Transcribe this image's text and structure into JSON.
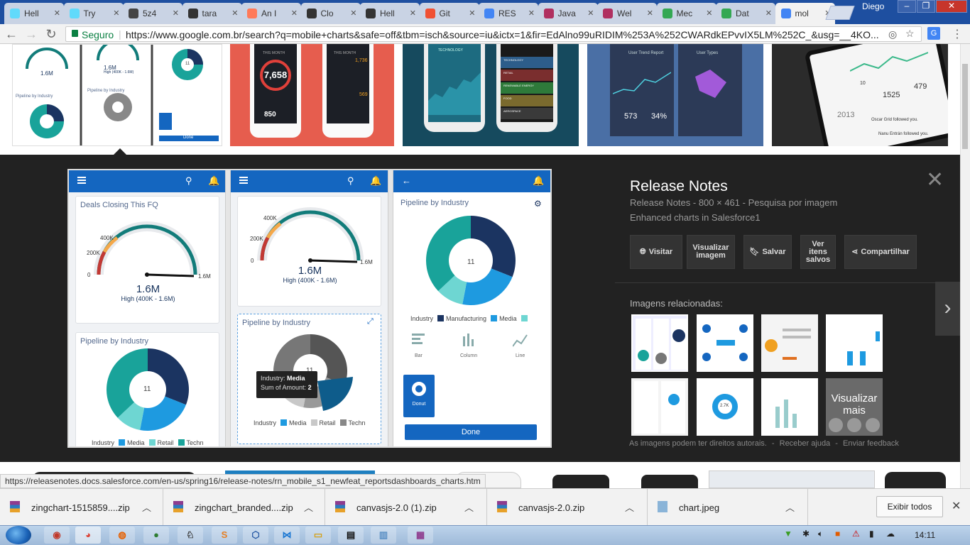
{
  "browser": {
    "user": "Diego",
    "tabs": [
      {
        "title": "Hell",
        "icon": "react-icon",
        "color": "#61dafb"
      },
      {
        "title": "Try",
        "icon": "react-icon",
        "color": "#61dafb"
      },
      {
        "title": "5z4",
        "icon": "codesandbox-icon",
        "color": "#444444"
      },
      {
        "title": "tara",
        "icon": "github-icon",
        "color": "#333333"
      },
      {
        "title": "An I",
        "icon": "hubspot-icon",
        "color": "#ff7a59"
      },
      {
        "title": "Clo",
        "icon": "github-icon",
        "color": "#333333"
      },
      {
        "title": "Hell",
        "icon": "github-icon",
        "color": "#333333"
      },
      {
        "title": "Git",
        "icon": "git-icon",
        "color": "#f05133"
      },
      {
        "title": "RES",
        "icon": "google-icon",
        "color": "#4285f4"
      },
      {
        "title": "Java",
        "icon": "chart-icon",
        "color": "#b03060"
      },
      {
        "title": "Wel",
        "icon": "chart-icon",
        "color": "#b03060"
      },
      {
        "title": "Mec",
        "icon": "sparkle-icon",
        "color": "#34a853"
      },
      {
        "title": "Dat",
        "icon": "sparkle-icon",
        "color": "#34a853"
      },
      {
        "title": "mol",
        "icon": "google-icon",
        "color": "#4285f4"
      }
    ],
    "omnibox": {
      "secure_label": "Seguro",
      "url": "https://www.google.com.br/search?q=mobile+charts&safe=off&tbm=isch&source=iu&ictx=1&fir=EdAlno99uRIDIM%253A%252CWARdkEPvvIX5LM%252C_&usg=__4KO..."
    }
  },
  "thumbs_top": {
    "mini_gauge_value": "1.6M",
    "mini_gauge_sub": "High (400K - 1.6M)",
    "mini_pipeline_title": "Pipeline by Industry",
    "mini_donut_center": "11",
    "mini_done": "Done",
    "app1_number": "7,658",
    "app1_header": "THIS MONTH",
    "app1_small": "850",
    "app2_header": "THIS MONTH",
    "app2_top": "1,736",
    "app2_mid": "569",
    "app3_header": "TECHNOLOGY",
    "app3_r1": "TECHNOLOGY",
    "app3_r2": "RETAIL",
    "app3_r3": "RENEWABLE ENERGY",
    "app3_r4": "FOOD",
    "app3_r5": "AEROSPACE",
    "app4_left_title": "User Trend Report",
    "app4_right_title": "User Types",
    "app4_stat1": "573",
    "app4_stat2": "34%",
    "app5_num1": "10",
    "app5_num2": "1525",
    "app5_num3": "479",
    "app5_year": "2013",
    "app5_feed1": "Oscar Grid followed you.",
    "app5_feed2": "Nanu Entrán followed you."
  },
  "preview": {
    "phone1": {
      "card1_title": "Deals Closing This FQ",
      "tick_0": "0",
      "tick_200k": "200K",
      "tick_400k": "400K",
      "tick_max": "1.6M",
      "value": "1.6M",
      "subtitle": "High (400K - 1.6M)",
      "card2_title": "Pipeline by Industry",
      "donut_center": "11",
      "legend_label": "Industry",
      "legend": [
        "Media",
        "Retail",
        "Techn"
      ]
    },
    "phone2": {
      "tick_0": "0",
      "tick_200k": "200K",
      "tick_400k": "400K",
      "tick_max": "1.6M",
      "value": "1.6M",
      "subtitle": "High (400K - 1.6M)",
      "card2_title": "Pipeline by Industry",
      "donut_center": "11",
      "tooltip_industry_label": "Industry:",
      "tooltip_industry_value": "Media",
      "tooltip_amount_label": "Sum of Amount:",
      "tooltip_amount_value": "2",
      "legend_label": "Industry",
      "legend": [
        "Media",
        "Retail",
        "Techn"
      ]
    },
    "phone3": {
      "title": "Pipeline by Industry",
      "donut_center": "11",
      "legend_label": "Industry",
      "legend": [
        "Manufacturing",
        "Media"
      ],
      "chart_types": [
        "Bar",
        "Column",
        "Line"
      ],
      "donut_label": "Donut",
      "done_label": "Done"
    }
  },
  "details": {
    "title": "Release Notes",
    "meta": "Release Notes  -  800 × 461  -  Pesquisa por imagem",
    "subtitle": "Enhanced charts in Salesforce1",
    "buttons": {
      "visit": "Visitar",
      "view_image": "Visualizar imagem",
      "save": "Salvar",
      "view_saved": "Ver itens salvos",
      "share": "Compartilhar"
    },
    "related_header": "Imagens relacionadas:",
    "more_label": "Visualizar mais",
    "copyright": "As imagens podem ter direitos autorais.",
    "feedback_help": "Receber ajuda",
    "feedback_send": "Enviar feedback",
    "related_chart": "2.7K"
  },
  "status_url": "https://releasenotes.docs.salesforce.com/en-us/spring16/release-notes/rn_mobile_s1_newfeat_reportsdashboards_charts.htm",
  "downloads": {
    "items": [
      "zingchart-1515859....zip",
      "zingchart_branded....zip",
      "canvasjs-2.0 (1).zip",
      "canvasjs-2.0.zip",
      "chart.jpeg"
    ],
    "show_all": "Exibir todos"
  },
  "taskbar": {
    "time": "14:11"
  },
  "colors": {
    "navy": "#1b3461",
    "blue": "#1e9ae0",
    "teal": "#19a39a",
    "aqua": "#6ed6d2",
    "sf_blue": "#1466c0"
  }
}
